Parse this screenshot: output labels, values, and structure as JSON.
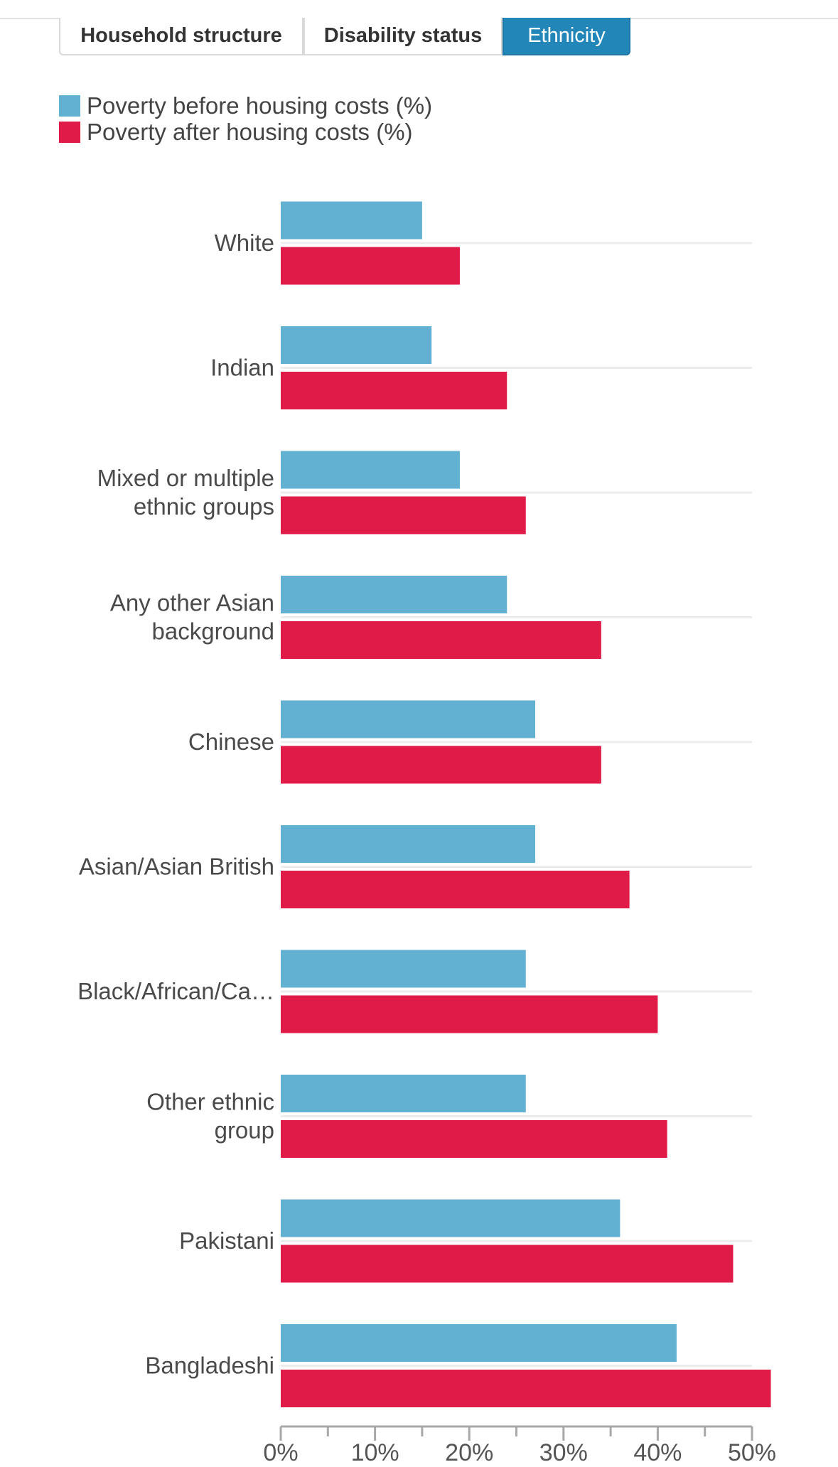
{
  "tabs": [
    {
      "label": "Household structure",
      "active": false
    },
    {
      "label": "Disability status",
      "active": false
    },
    {
      "label": "Ethnicity",
      "active": true
    }
  ],
  "colors": {
    "before": "#62b1d3",
    "after": "#e11b48",
    "tab_active": "#2386b8"
  },
  "legend": [
    {
      "label": "Poverty before housing costs (%)",
      "color": "#62b1d3"
    },
    {
      "label": "Poverty after housing costs (%)",
      "color": "#e11b48"
    }
  ],
  "chart_data": {
    "type": "bar",
    "orientation": "horizontal",
    "categories": [
      [
        "White"
      ],
      [
        "Indian"
      ],
      [
        "Mixed or multiple",
        "ethnic groups"
      ],
      [
        "Any other Asian",
        "background"
      ],
      [
        "Chinese"
      ],
      [
        "Asian/Asian British"
      ],
      [
        "Black/African/Ca…"
      ],
      [
        "Other ethnic",
        "group"
      ],
      [
        "Pakistani"
      ],
      [
        "Bangladeshi"
      ]
    ],
    "series": [
      {
        "name": "Poverty before housing costs (%)",
        "values": [
          15,
          16,
          19,
          24,
          27,
          27,
          26,
          26,
          36,
          42
        ]
      },
      {
        "name": "Poverty after housing costs (%)",
        "values": [
          19,
          24,
          26,
          34,
          34,
          37,
          40,
          41,
          48,
          52
        ]
      }
    ],
    "xlim": [
      0,
      50
    ],
    "xticks": [
      0,
      10,
      20,
      30,
      40,
      50
    ],
    "xtick_labels": [
      "0%",
      "10%",
      "20%",
      "30%",
      "40%",
      "50%"
    ],
    "legend_position": "top-left",
    "grid": true
  }
}
